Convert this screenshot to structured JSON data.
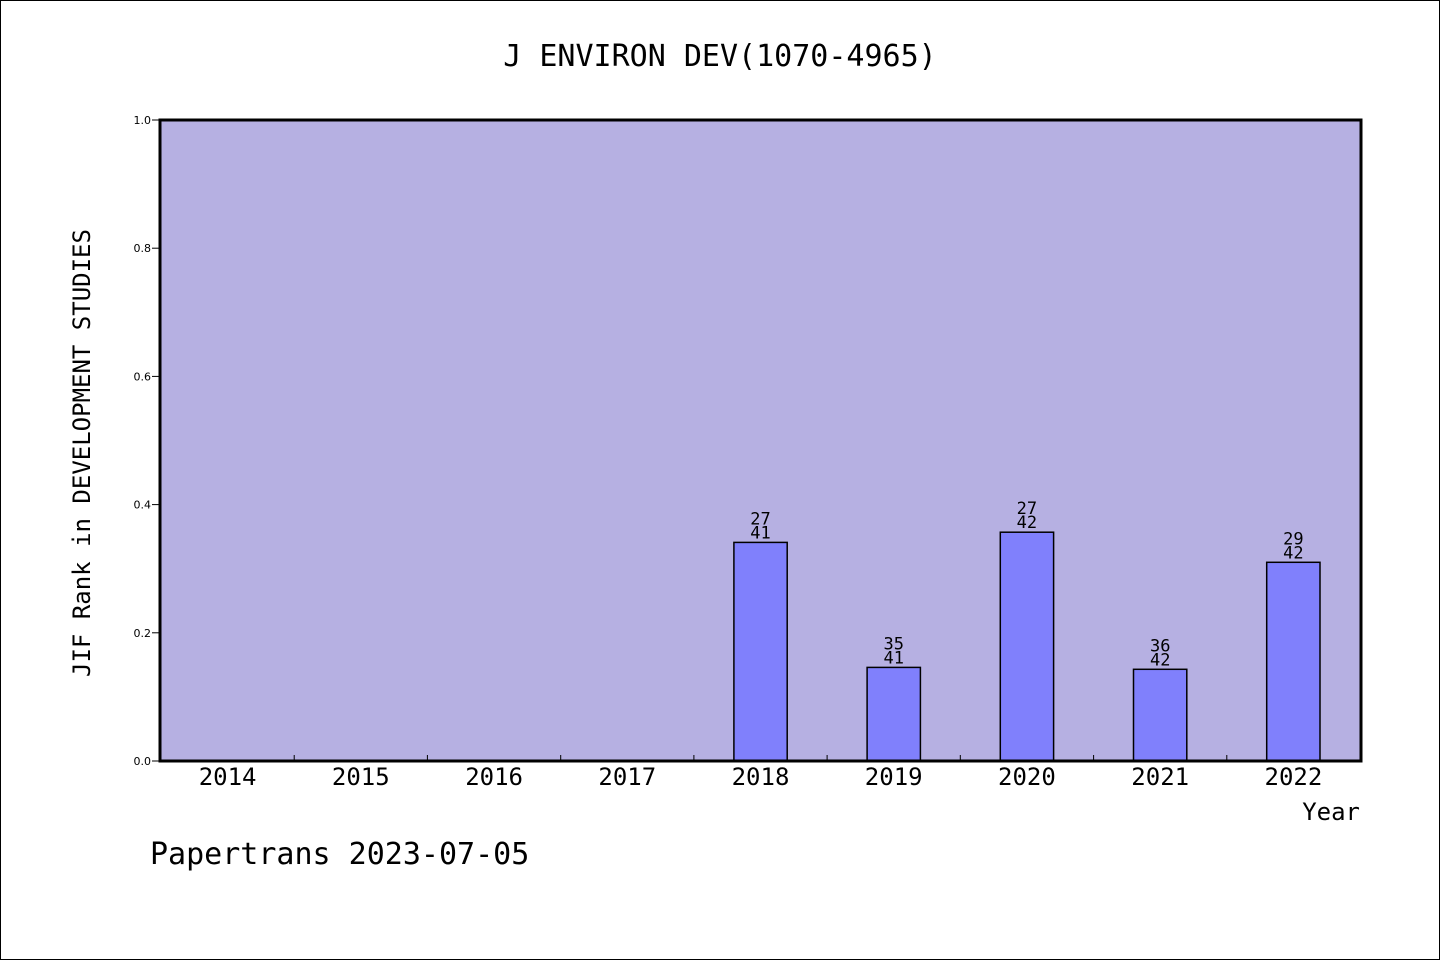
{
  "chart_data": {
    "type": "bar",
    "title": "J ENVIRON DEV(1070-4965)",
    "xlabel": "Year",
    "ylabel": "JIF Rank in DEVELOPMENT STUDIES",
    "categories": [
      "2014",
      "2015",
      "2016",
      "2017",
      "2018",
      "2019",
      "2020",
      "2021",
      "2022"
    ],
    "values": [
      null,
      null,
      null,
      null,
      0.341,
      0.146,
      0.357,
      0.143,
      0.31
    ],
    "labels": [
      null,
      null,
      null,
      null,
      {
        "top": "27",
        "bottom": "41"
      },
      {
        "top": "35",
        "bottom": "41"
      },
      {
        "top": "27",
        "bottom": "42"
      },
      {
        "top": "36",
        "bottom": "42"
      },
      {
        "top": "29",
        "bottom": "42"
      }
    ],
    "ylim": [
      0,
      1.0
    ],
    "yticks": [
      "0.0",
      "0.2",
      "0.4",
      "0.6",
      "0.8",
      "1.0"
    ],
    "grid": false,
    "legend": "none",
    "colors": {
      "plot_background": "#b6b0e2",
      "bar_fill": "#8080fc",
      "bar_stroke": "#000000"
    }
  },
  "footer": {
    "watermark": "Papertrans 2023-07-05"
  }
}
